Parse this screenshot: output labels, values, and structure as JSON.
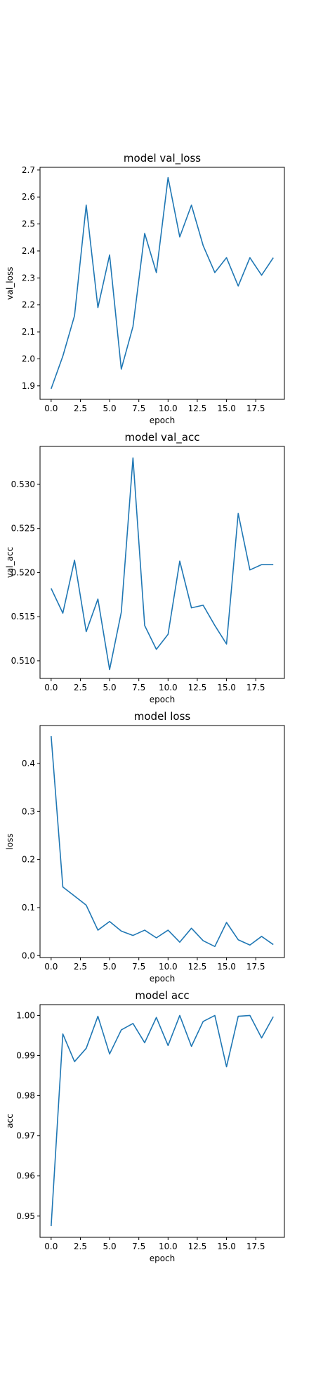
{
  "chart_data": [
    {
      "type": "line",
      "title": "model val_loss",
      "xlabel": "epoch",
      "ylabel": "val_loss",
      "x": [
        0,
        1,
        2,
        3,
        4,
        5,
        6,
        7,
        8,
        9,
        10,
        11,
        12,
        13,
        14,
        15,
        16,
        17,
        18,
        19
      ],
      "series": [
        {
          "values": [
            1.889,
            2.01,
            2.16,
            2.57,
            2.19,
            2.385,
            1.962,
            2.12,
            2.465,
            2.32,
            2.672,
            2.452,
            2.57,
            2.42,
            2.32,
            2.375,
            2.27,
            2.375,
            2.31,
            2.375
          ]
        }
      ],
      "xlim": [
        -0.95,
        19.95
      ],
      "ylim": [
        1.85,
        2.71
      ],
      "xticks": [
        0.0,
        2.5,
        5.0,
        7.5,
        10.0,
        12.5,
        15.0,
        17.5
      ],
      "xtick_labels": [
        "0.0",
        "2.5",
        "5.0",
        "7.5",
        "10.0",
        "12.5",
        "15.0",
        "17.5"
      ],
      "yticks": [
        1.9,
        2.0,
        2.1,
        2.2,
        2.3,
        2.4,
        2.5,
        2.6,
        2.7
      ],
      "ytick_labels": [
        "1.9",
        "2.0",
        "2.1",
        "2.2",
        "2.3",
        "2.4",
        "2.5",
        "2.6",
        "2.7"
      ],
      "grid": false,
      "line_color": "#1f77b4"
    },
    {
      "type": "line",
      "title": "model val_acc",
      "xlabel": "epoch",
      "ylabel": "val_acc",
      "x": [
        0,
        1,
        2,
        3,
        4,
        5,
        6,
        7,
        8,
        9,
        10,
        11,
        12,
        13,
        14,
        15,
        16,
        17,
        18,
        19
      ],
      "series": [
        {
          "values": [
            0.5182,
            0.5154,
            0.5214,
            0.5133,
            0.517,
            0.509,
            0.5155,
            0.533,
            0.514,
            0.5113,
            0.513,
            0.5213,
            0.516,
            0.5163,
            0.514,
            0.5119,
            0.5267,
            0.5203,
            0.5209,
            0.5209
          ]
        }
      ],
      "xlim": [
        -0.95,
        19.95
      ],
      "ylim": [
        0.508,
        0.5343
      ],
      "xticks": [
        0.0,
        2.5,
        5.0,
        7.5,
        10.0,
        12.5,
        15.0,
        17.5
      ],
      "xtick_labels": [
        "0.0",
        "2.5",
        "5.0",
        "7.5",
        "10.0",
        "12.5",
        "15.0",
        "17.5"
      ],
      "yticks": [
        0.51,
        0.515,
        0.52,
        0.525,
        0.53
      ],
      "ytick_labels": [
        "0.510",
        "0.515",
        "0.520",
        "0.525",
        "0.530"
      ],
      "grid": false,
      "line_color": "#1f77b4"
    },
    {
      "type": "line",
      "title": "model loss",
      "xlabel": "epoch",
      "ylabel": "loss",
      "x": [
        0,
        1,
        2,
        3,
        4,
        5,
        6,
        7,
        8,
        9,
        10,
        11,
        12,
        13,
        14,
        15,
        16,
        17,
        18,
        19
      ],
      "series": [
        {
          "values": [
            0.457,
            0.143,
            0.124,
            0.105,
            0.053,
            0.071,
            0.051,
            0.042,
            0.053,
            0.037,
            0.053,
            0.028,
            0.057,
            0.031,
            0.019,
            0.069,
            0.033,
            0.022,
            0.04,
            0.023
          ]
        }
      ],
      "xlim": [
        -0.95,
        19.95
      ],
      "ylim": [
        -0.004,
        0.479
      ],
      "xticks": [
        0.0,
        2.5,
        5.0,
        7.5,
        10.0,
        12.5,
        15.0,
        17.5
      ],
      "xtick_labels": [
        "0.0",
        "2.5",
        "5.0",
        "7.5",
        "10.0",
        "12.5",
        "15.0",
        "17.5"
      ],
      "yticks": [
        0.0,
        0.1,
        0.2,
        0.3,
        0.4
      ],
      "ytick_labels": [
        "0.0",
        "0.1",
        "0.2",
        "0.3",
        "0.4"
      ],
      "grid": false,
      "line_color": "#1f77b4"
    },
    {
      "type": "line",
      "title": "model acc",
      "xlabel": "epoch",
      "ylabel": "acc",
      "x": [
        0,
        1,
        2,
        3,
        4,
        5,
        6,
        7,
        8,
        9,
        10,
        11,
        12,
        13,
        14,
        15,
        16,
        17,
        18,
        19
      ],
      "series": [
        {
          "values": [
            0.9475,
            0.9954,
            0.9885,
            0.9918,
            0.9998,
            0.9904,
            0.9964,
            0.998,
            0.9932,
            0.9995,
            0.9925,
            1.0,
            0.9923,
            0.9985,
            1.0,
            0.9872,
            0.9998,
            1.0,
            0.9944,
            0.9997
          ]
        }
      ],
      "xlim": [
        -0.95,
        19.95
      ],
      "ylim": [
        0.9447,
        1.0027
      ],
      "xticks": [
        0.0,
        2.5,
        5.0,
        7.5,
        10.0,
        12.5,
        15.0,
        17.5
      ],
      "xtick_labels": [
        "0.0",
        "2.5",
        "5.0",
        "7.5",
        "10.0",
        "12.5",
        "15.0",
        "17.5"
      ],
      "yticks": [
        0.95,
        0.96,
        0.97,
        0.98,
        0.99,
        1.0
      ],
      "ytick_labels": [
        "0.95",
        "0.96",
        "0.97",
        "0.98",
        "0.99",
        "1.00"
      ],
      "grid": false,
      "line_color": "#1f77b4"
    }
  ]
}
